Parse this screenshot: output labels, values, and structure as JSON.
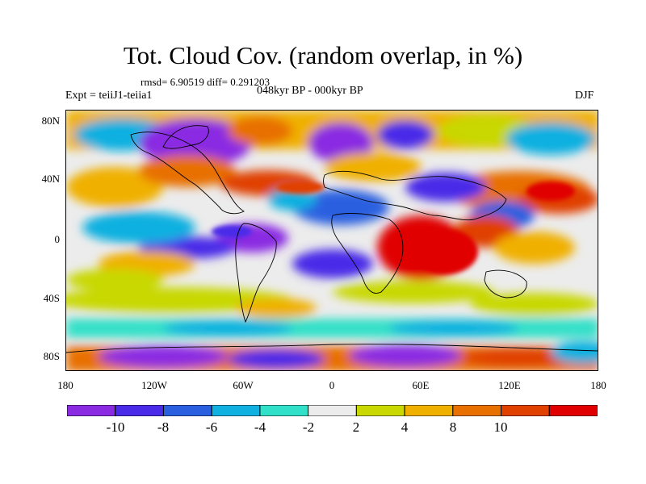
{
  "figure": {
    "title": "Tot. Cloud Cov. (random overlap, in %)",
    "stats": "rmsd= 6.90519 diff= 0.291203",
    "experiment": "Expt = teiiJ1-teiia1",
    "period": "048kyr BP - 000kyr BP",
    "season": "DJF"
  },
  "map": {
    "lat_labels": [
      "80N",
      "40N",
      "0",
      "40S",
      "80S"
    ],
    "lon_labels": [
      "180",
      "120W",
      "60W",
      "0",
      "60E",
      "120E",
      "180"
    ]
  },
  "colorbar": {
    "colors": [
      "#8a2be2",
      "#4a2be8",
      "#2a60e0",
      "#10b0e0",
      "#30e0c8",
      "#ececec",
      "#c8d800",
      "#f0b000",
      "#e87000",
      "#e04000",
      "#e00000"
    ],
    "labels": [
      "-10",
      "-8",
      "-6",
      "-4",
      "-2",
      "2",
      "4",
      "8",
      "10"
    ]
  }
}
